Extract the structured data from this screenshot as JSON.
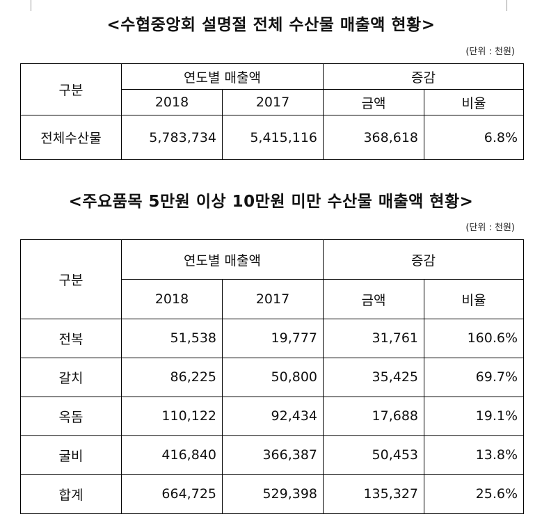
{
  "title1": "<수협중앙회 설명절 전체 수산물 매출액 현황>",
  "unit1": "(단위 : 천원)",
  "table1": {
    "col_group": "구분",
    "group_sales": "연도별 매출액",
    "group_change": "증감",
    "year_2018": "2018",
    "year_2017": "2017",
    "amount": "금액",
    "ratio": "비율",
    "rows": [
      {
        "name": "전체수산물",
        "y2018": "5,783,734",
        "y2017": "5,415,116",
        "amount": "368,618",
        "ratio": "6.8%"
      }
    ]
  },
  "title2": "<주요품목 5만원 이상 10만원 미만 수산물 매출액 현황>",
  "unit2": "(단위 : 천원)",
  "table2": {
    "col_group": "구분",
    "group_sales": "연도별 매출액",
    "group_change": "증감",
    "year_2018": "2018",
    "year_2017": "2017",
    "amount": "금액",
    "ratio": "비율",
    "rows": [
      {
        "name": "전복",
        "y2018": "51,538",
        "y2017": "19,777",
        "amount": "31,761",
        "ratio": "160.6%"
      },
      {
        "name": "갈치",
        "y2018": "86,225",
        "y2017": "50,800",
        "amount": "35,425",
        "ratio": "69.7%"
      },
      {
        "name": "옥돔",
        "y2018": "110,122",
        "y2017": "92,434",
        "amount": "17,688",
        "ratio": "19.1%"
      },
      {
        "name": "굴비",
        "y2018": "416,840",
        "y2017": "366,387",
        "amount": "50,453",
        "ratio": "13.8%"
      },
      {
        "name": "합계",
        "y2018": "664,725",
        "y2017": "529,398",
        "amount": "135,327",
        "ratio": "25.6%"
      }
    ]
  }
}
